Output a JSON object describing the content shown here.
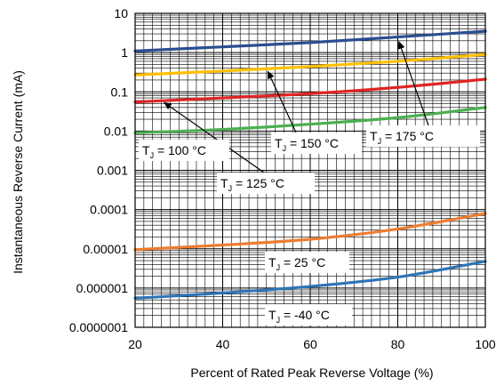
{
  "chart_data": {
    "type": "line",
    "title": "",
    "xlabel": "Percent of Rated Peak Reverse Voltage (%)",
    "ylabel": "Instantaneous Reverse Current (mA)",
    "xlim": [
      20,
      100
    ],
    "ylim": [
      1e-07,
      10
    ],
    "yscale": "log",
    "grid": true,
    "x_ticks": [
      20,
      40,
      60,
      80,
      100
    ],
    "x_tick_labels": [
      "20",
      "40",
      "60",
      "80",
      "100"
    ],
    "y_ticks": [
      1e-07,
      1e-06,
      1e-05,
      0.0001,
      0.001,
      0.01,
      0.1,
      1,
      10
    ],
    "y_tick_labels": [
      "0.0000001",
      "0.000001",
      "0.00001",
      "0.0001",
      "0.001",
      "0.01",
      "0.1",
      "1",
      "10"
    ],
    "series": [
      {
        "temp": "175 °C",
        "color": "#2a4f8f",
        "x": [
          20,
          40,
          60,
          80,
          100
        ],
        "y": [
          1.1,
          1.4,
          1.8,
          2.5,
          3.5
        ]
      },
      {
        "temp": "150 °C",
        "color": "#ffc000",
        "x": [
          20,
          40,
          60,
          80,
          100
        ],
        "y": [
          0.27,
          0.34,
          0.44,
          0.6,
          0.9
        ]
      },
      {
        "temp": "125 °C",
        "color": "#e02424",
        "x": [
          20,
          40,
          60,
          80,
          100
        ],
        "y": [
          0.055,
          0.07,
          0.09,
          0.13,
          0.21
        ]
      },
      {
        "temp": "100 °C",
        "color": "#4caf50",
        "x": [
          20,
          40,
          60,
          80,
          100
        ],
        "y": [
          0.009,
          0.011,
          0.015,
          0.022,
          0.04
        ]
      },
      {
        "temp": "25 °C",
        "color": "#ed7d31",
        "x": [
          20,
          40,
          60,
          80,
          100
        ],
        "y": [
          9.5e-06,
          1.25e-05,
          1.75e-05,
          3.2e-05,
          8e-05
        ]
      },
      {
        "temp": "-40 °C",
        "color": "#2e75b6",
        "x": [
          20,
          40,
          60,
          80,
          100
        ],
        "y": [
          5.5e-07,
          7.5e-07,
          1.1e-06,
          1.9e-06,
          4.8e-06
        ]
      }
    ],
    "annotations": [
      {
        "prefix": "T",
        "sub": "J",
        "text": " = 175 °C",
        "box": true,
        "arrow_to": {
          "x": 80,
          "y": 2.3
        }
      },
      {
        "prefix": "T",
        "sub": "J",
        "text": " = 150 °C",
        "box": true,
        "arrow_to": {
          "x": 50,
          "y": 0.4
        }
      },
      {
        "prefix": "T",
        "sub": "J",
        "text": " = 125 °C",
        "box": true,
        "arrow_to": {
          "x": 26,
          "y": 0.06
        }
      },
      {
        "prefix": "T",
        "sub": "J",
        "text": " = 100 °C",
        "box": true
      },
      {
        "prefix": "T",
        "sub": "J",
        "text": " = 25 °C",
        "box": true
      },
      {
        "prefix": "T",
        "sub": "J",
        "text": " = -40 °C",
        "box": true
      }
    ]
  }
}
